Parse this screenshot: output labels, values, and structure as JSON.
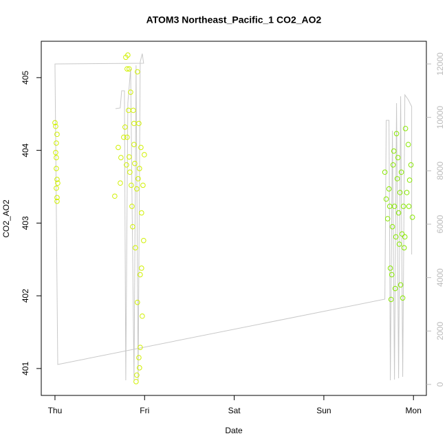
{
  "chart_data": {
    "type": "scatter",
    "title": "ATOM3 Northeast_Pacific_1 CO2_AO2",
    "xlabel": "Date",
    "ylabel": "CO2_AO2",
    "xlim": [
      -0.153,
      4.144
    ],
    "xticks": [
      {
        "value": 0,
        "label": "Thu"
      },
      {
        "value": 1,
        "label": "Fri"
      },
      {
        "value": 2,
        "label": "Sat"
      },
      {
        "value": 3,
        "label": "Sun"
      },
      {
        "value": 4,
        "label": "Mon"
      }
    ],
    "ylim": [
      400.63,
      405.5
    ],
    "yticks": [
      401,
      402,
      403,
      404,
      405
    ],
    "y2lim": [
      -412,
      12850
    ],
    "y2ticks": [
      0,
      2000,
      4000,
      6000,
      8000,
      10000,
      12000
    ],
    "y2_color": "#bbbbbb",
    "series": [
      {
        "type": "scatter",
        "color": "#d0f000",
        "x": [
          0,
          0.008,
          0.015,
          0.023,
          0.008,
          0.015,
          0.015,
          0.023,
          0.031,
          0.015,
          0.023,
          0.023,
          0.667,
          0.706,
          0.729,
          0.736,
          0.767,
          0.782,
          0.79,
          0.805,
          0.813,
          0.798,
          0.828,
          0.836,
          0.844,
          0.851,
          0.859,
          0.867,
          0.874,
          0.882,
          0.89,
          0.897,
          0.905,
          0.913,
          0.92,
          0.928,
          0.936,
          0.943,
          0.951,
          0.959,
          0.966,
          0.974,
          0.982,
          0.989,
          0.997,
          0.92,
          0.828,
          0.936,
          0.951,
          0.966,
          0.913,
          0.882,
          0.943,
          0.805,
          0.821
        ],
        "values": [
          404.38,
          404.33,
          404.1,
          404.22,
          403.97,
          403.9,
          403.75,
          403.6,
          403.55,
          403.48,
          403.35,
          403.3,
          403.37,
          404.04,
          403.55,
          403.9,
          404.18,
          404.32,
          405.28,
          405.12,
          405.31,
          403.8,
          403.91,
          403.7,
          404.8,
          403.52,
          403.23,
          402.95,
          404.55,
          404.08,
          403.82,
          402.66,
          400.82,
          400.91,
          401.91,
          403.61,
          401.15,
          403.75,
          402.29,
          404.04,
          403.14,
          401.72,
          403.52,
          402.76,
          403.94,
          405.08,
          405.12,
          404.37,
          401.29,
          402.38,
          403.47,
          404.37,
          401.01,
          404.18,
          404.55
        ]
      },
      {
        "type": "scatter",
        "color": "#88e800",
        "x": [
          3.681,
          3.696,
          3.712,
          3.727,
          3.735,
          3.742,
          3.75,
          3.758,
          3.765,
          3.773,
          3.781,
          3.788,
          3.796,
          3.804,
          3.811,
          3.819,
          3.827,
          3.834,
          3.842,
          3.85,
          3.857,
          3.865,
          3.873,
          3.88,
          3.888,
          3.896,
          3.911,
          3.926,
          3.942,
          3.957,
          3.972,
          3.988,
          3.949,
          3.904
        ],
        "values": [
          403.7,
          403.33,
          403.06,
          403.47,
          403.23,
          402.38,
          401.95,
          402.29,
          402.95,
          403.8,
          403.99,
          403.23,
          402.1,
          402.81,
          404.23,
          403.61,
          403.9,
          403.14,
          402.71,
          403.42,
          402.15,
          403.7,
          402.85,
          401.97,
          403.23,
          402.66,
          404.3,
          403.42,
          404.08,
          403.59,
          403.8,
          403.08,
          403.23,
          402.81
        ]
      },
      {
        "type": "line",
        "axis": "y2",
        "color": "#c8c8c8",
        "x": [
          0.675,
          0.728,
          0.744,
          0.775,
          0.79,
          0.813,
          0.844,
          0.882,
          0.905,
          0.928,
          0.951,
          0.974,
          0.989,
          0,
          0.031,
          3.681,
          3.696,
          3.727,
          3.742,
          3.765,
          3.788,
          3.811,
          3.834,
          3.857,
          3.88,
          3.904,
          3.942,
          3.98,
          3.98
        ],
        "values": [
          10327,
          10353,
          10997,
          10997,
          155,
          10533,
          11821,
          155,
          11950,
          155,
          12078,
          12387,
          12027,
          12001,
          747,
          3193,
          9889,
          9889,
          155,
          9503,
          180,
          10533,
          232,
          10791,
          283,
          10842,
          10662,
          10404,
          4867
        ]
      }
    ]
  }
}
